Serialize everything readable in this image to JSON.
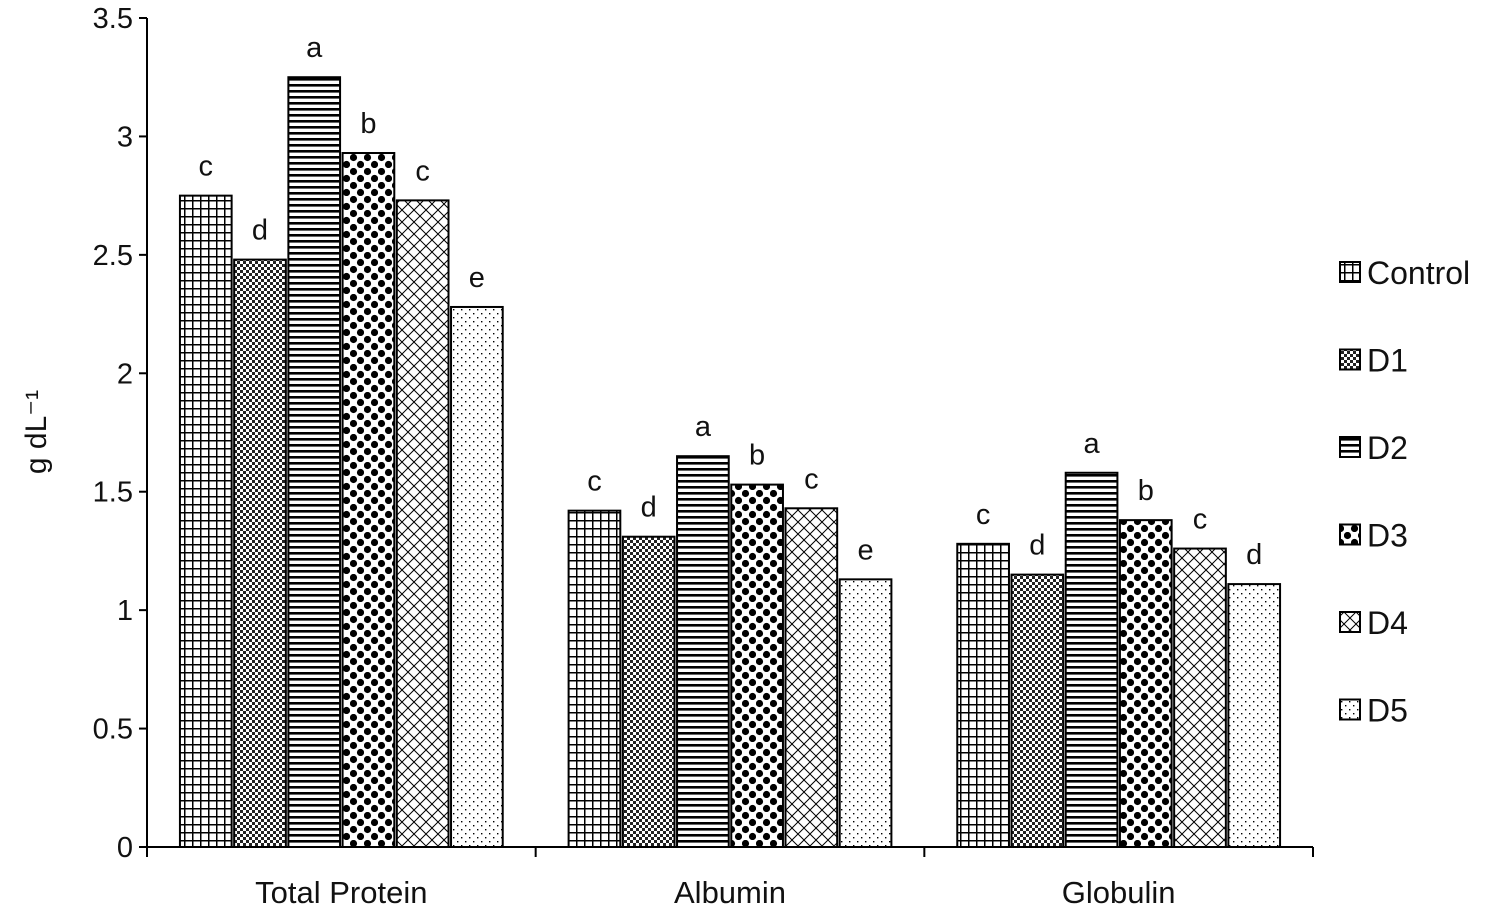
{
  "chart_data": {
    "type": "bar",
    "ylabel": "g dL⁻¹",
    "xlabel": "",
    "ylim": [
      0,
      3.5
    ],
    "yticks": [
      0,
      0.5,
      1,
      1.5,
      2,
      2.5,
      3,
      3.5
    ],
    "ytick_labels": [
      "0",
      "0.5",
      "1",
      "1.5",
      "2",
      "2.5",
      "3",
      "3.5"
    ],
    "categories": [
      "Total Protein",
      "Albumin",
      "Globulin"
    ],
    "legend_position": "right",
    "series": [
      {
        "name": "Control",
        "pattern": "grid",
        "values": [
          2.75,
          1.42,
          1.28
        ],
        "letters": [
          "c",
          "c",
          "c"
        ]
      },
      {
        "name": "D1",
        "pattern": "checker",
        "values": [
          2.48,
          1.31,
          1.15
        ],
        "letters": [
          "d",
          "d",
          "d"
        ]
      },
      {
        "name": "D2",
        "pattern": "hstripes",
        "values": [
          3.25,
          1.65,
          1.58
        ],
        "letters": [
          "a",
          "a",
          "a"
        ]
      },
      {
        "name": "D3",
        "pattern": "dots",
        "values": [
          2.93,
          1.53,
          1.38
        ],
        "letters": [
          "b",
          "b",
          "b"
        ]
      },
      {
        "name": "D4",
        "pattern": "crosshatch",
        "values": [
          2.73,
          1.43,
          1.26
        ],
        "letters": [
          "c",
          "c",
          "c"
        ]
      },
      {
        "name": "D5",
        "pattern": "stipple",
        "values": [
          2.28,
          1.13,
          1.11
        ],
        "letters": [
          "e",
          "e",
          "d"
        ]
      }
    ]
  }
}
